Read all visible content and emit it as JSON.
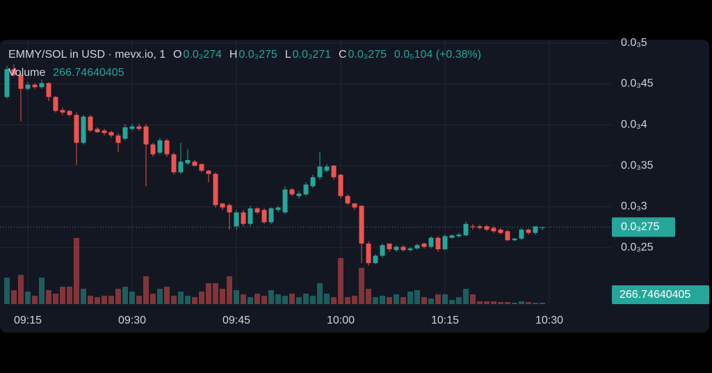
{
  "chart_data": {
    "type": "candlestick",
    "legend": {
      "symbol": "EMMY/SOL in USD · mevx.io, 1",
      "open_label": "O",
      "open": "0.0₃274",
      "high_label": "H",
      "high": "0.0₃275",
      "low_label": "L",
      "low": "0.0₃271",
      "close_label": "C",
      "close": "0.0₃275",
      "change": "0.0₅104 (+0.38%)",
      "volume_label": "Volume",
      "volume": "266.74640405"
    },
    "x": [
      "09:12",
      "09:13",
      "09:14",
      "09:15",
      "09:16",
      "09:17",
      "09:18",
      "09:19",
      "09:20",
      "09:21",
      "09:22",
      "09:23",
      "09:24",
      "09:25",
      "09:26",
      "09:27",
      "09:28",
      "09:29",
      "09:30",
      "09:31",
      "09:32",
      "09:33",
      "09:34",
      "09:35",
      "09:36",
      "09:37",
      "09:38",
      "09:39",
      "09:40",
      "09:41",
      "09:42",
      "09:43",
      "09:44",
      "09:45",
      "09:46",
      "09:47",
      "09:48",
      "09:49",
      "09:50",
      "09:51",
      "09:52",
      "09:53",
      "09:54",
      "09:55",
      "09:56",
      "09:57",
      "09:58",
      "09:59",
      "10:00",
      "10:01",
      "10:02",
      "10:03",
      "10:04",
      "10:05",
      "10:06",
      "10:07",
      "10:08",
      "10:09",
      "10:10",
      "10:11",
      "10:12",
      "10:13",
      "10:14",
      "10:15",
      "10:16",
      "10:17",
      "10:18",
      "10:19",
      "10:20",
      "10:21",
      "10:22",
      "10:23",
      "10:24",
      "10:25",
      "10:26",
      "10:27",
      "10:28",
      "10:29"
    ],
    "open": [
      0.000434,
      0.000468,
      0.000461,
      0.000444,
      0.000449,
      0.000446,
      0.000451,
      0.000434,
      0.000418,
      0.000417,
      0.000412,
      0.000378,
      0.00041,
      0.000395,
      0.000393,
      0.000391,
      0.000387,
      0.000383,
      0.000395,
      0.000398,
      0.000398,
      0.000376,
      0.000366,
      0.000381,
      0.000364,
      0.000342,
      0.000353,
      0.000355,
      0.000352,
      0.000344,
      0.00034,
      0.000304,
      0.000302,
      0.000276,
      0.000293,
      0.000279,
      0.000298,
      0.000296,
      0.000281,
      0.000296,
      0.000293,
      0.000321,
      0.000313,
      0.000315,
      0.000325,
      0.000336,
      0.000344,
      0.00035,
      0.000339,
      0.000313,
      0.000304,
      0.000301,
      0.000255,
      0.000231,
      0.00024,
      0.000255,
      0.000247,
      0.000251,
      0.000247,
      0.000249,
      0.000255,
      0.000251,
      0.000262,
      0.000248,
      0.000262,
      0.000264,
      0.000265,
      0.000276,
      0.000276,
      0.000276,
      0.000274,
      0.000272,
      0.00027,
      0.000259,
      0.000261,
      0.000272,
      0.000268,
      0.000274
    ],
    "high": [
      0.000472,
      0.000474,
      0.000463,
      0.000452,
      0.000451,
      0.000455,
      0.000452,
      0.000435,
      0.000421,
      0.000418,
      0.000415,
      0.000412,
      0.000412,
      0.000397,
      0.000395,
      0.000393,
      0.00039,
      0.000401,
      0.000401,
      0.000401,
      0.000401,
      0.000378,
      0.000384,
      0.000383,
      0.000366,
      0.000378,
      0.00037,
      0.000357,
      0.000353,
      0.000345,
      0.000342,
      0.000304,
      0.000304,
      0.000296,
      0.000296,
      0.000301,
      0.000299,
      0.000298,
      0.000299,
      0.000301,
      0.000325,
      0.000323,
      0.000319,
      0.00033,
      0.000339,
      0.000367,
      0.000352,
      0.000351,
      0.00034,
      0.000315,
      0.000304,
      0.000302,
      0.000258,
      0.000242,
      0.000255,
      0.000255,
      0.000253,
      0.000253,
      0.000251,
      0.000255,
      0.000256,
      0.000264,
      0.000264,
      0.000266,
      0.000266,
      0.000268,
      0.000282,
      0.000279,
      0.000278,
      0.000278,
      0.000276,
      0.000274,
      0.000272,
      0.000262,
      0.000274,
      0.000273,
      0.000276,
      0.000275
    ],
    "low": [
      0.000432,
      0.000459,
      0.000404,
      0.000442,
      0.000444,
      0.000444,
      0.000429,
      0.000415,
      0.000412,
      0.00041,
      0.000351,
      0.000376,
      0.000391,
      0.00039,
      0.000387,
      0.000384,
      0.000367,
      0.000381,
      0.000393,
      0.000393,
      0.000325,
      0.000361,
      0.000364,
      0.000361,
      0.000339,
      0.00034,
      0.000351,
      0.000349,
      0.000342,
      0.00033,
      0.000299,
      0.000296,
      0.000272,
      0.000272,
      0.000276,
      0.000276,
      0.000291,
      0.000279,
      0.000279,
      0.000293,
      0.000291,
      0.000313,
      0.00031,
      0.000313,
      0.000323,
      0.000333,
      0.000342,
      0.000333,
      0.00031,
      0.000302,
      0.000296,
      0.000231,
      0.000228,
      0.00023,
      0.000238,
      0.000245,
      0.000245,
      0.000245,
      0.000245,
      0.000247,
      0.000249,
      0.000249,
      0.000245,
      0.000247,
      0.000261,
      0.000262,
      0.000264,
      0.000272,
      0.000272,
      0.00027,
      0.000268,
      0.000266,
      0.000258,
      0.000258,
      0.000259,
      0.000266,
      0.000266,
      0.000271
    ],
    "close": [
      0.000468,
      0.000461,
      0.000444,
      0.000449,
      0.000446,
      0.000451,
      0.000434,
      0.000417,
      0.000415,
      0.000412,
      0.000378,
      0.00041,
      0.000393,
      0.000391,
      0.00039,
      0.000387,
      0.000378,
      0.000397,
      0.000398,
      0.000395,
      0.000376,
      0.000364,
      0.000381,
      0.000364,
      0.000342,
      0.000355,
      0.000357,
      0.00035,
      0.000344,
      0.00034,
      0.000302,
      0.000299,
      0.000293,
      0.000293,
      0.000279,
      0.000298,
      0.000293,
      0.000281,
      0.000298,
      0.000299,
      0.000321,
      0.000315,
      0.000316,
      0.000327,
      0.000336,
      0.000349,
      0.000349,
      0.000336,
      0.000313,
      0.000304,
      0.000299,
      0.000255,
      0.000231,
      0.00024,
      0.000253,
      0.000248,
      0.000251,
      0.000247,
      0.000249,
      0.000253,
      0.000251,
      0.000262,
      0.000248,
      0.000264,
      0.000265,
      0.000266,
      0.000279,
      0.000275,
      0.000274,
      0.000272,
      0.00027,
      0.000268,
      0.000259,
      0.000261,
      0.000272,
      0.000268,
      0.000276,
      0.000275
    ],
    "volume": [
      5054,
      2660,
      5586,
      2394,
      1596,
      5054,
      2660,
      1995,
      3325,
      3325,
      12635,
      2926,
      1596,
      1330,
      1596,
      1596,
      2926,
      3325,
      2394,
      1596,
      5320,
      1995,
      2926,
      3325,
      1596,
      2394,
      1596,
      1330,
      2394,
      3990,
      3990,
      2926,
      5320,
      2660,
      1862,
      1330,
      1995,
      1596,
      2660,
      1862,
      1596,
      1995,
      1330,
      1995,
      1596,
      3990,
      1995,
      1330,
      8778,
      1330,
      1596,
      6916,
      2926,
      1330,
      1596,
      1330,
      1862,
      1330,
      2394,
      2660,
      1330,
      1064,
      1862,
      1862,
      798,
      1330,
      2926,
      1862,
      532,
      532,
      532,
      399,
      399,
      266,
      532,
      399,
      266,
      266.74640405
    ],
    "up_color": "#26a69a",
    "down_color": "#ef5350",
    "xlim": [
      "09:11",
      "10:39"
    ],
    "xticks": [
      "09:15",
      "09:30",
      "09:45",
      "10:00",
      "10:15",
      "10:30"
    ],
    "ylim": [
      0.000181,
      0.000504
    ],
    "yticks": [
      {
        "value": 0.00025,
        "label": "0.0₃25"
      },
      {
        "value": 0.0003,
        "label": "0.0₃3"
      },
      {
        "value": 0.00035,
        "label": "0.0₃35"
      },
      {
        "value": 0.0004,
        "label": "0.0₃4"
      },
      {
        "value": 0.00045,
        "label": "0.0₃45"
      },
      {
        "value": 0.0005,
        "label": "0.0₃5"
      }
    ],
    "volume_lim": [
      0,
      15000
    ],
    "grid": true
  }
}
